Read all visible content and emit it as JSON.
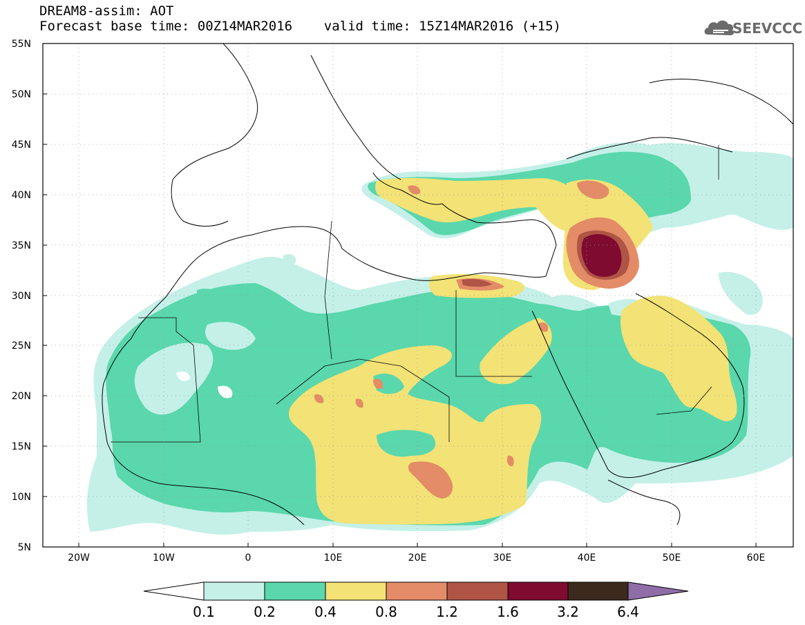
{
  "title": {
    "line1": "DREAM8-assim: AOT",
    "line2": "Forecast base time: 00Z14MAR2016    valid time: 15Z14MAR2016 (+15)"
  },
  "logo": {
    "text": "SEEVCCC",
    "icon": "cloud-logo-icon",
    "color": "#6b6b6b"
  },
  "map": {
    "lon_range": [
      -25,
      65
    ],
    "lat_range": [
      5,
      55
    ],
    "x_ticks": [
      "20W",
      "10W",
      "0",
      "10E",
      "20E",
      "30E",
      "40E",
      "50E",
      "60E"
    ],
    "y_ticks": [
      "55N",
      "50N",
      "45N",
      "40N",
      "35N",
      "30N",
      "25N",
      "20N",
      "15N",
      "10N",
      "5N"
    ],
    "grid": "dotted"
  },
  "colorbar": {
    "labels": [
      "0.1",
      "0.2",
      "0.4",
      "0.8",
      "1.2",
      "1.6",
      "3.2",
      "6.4"
    ],
    "colors": [
      "#ffffff",
      "#c4f0e8",
      "#5ad7ac",
      "#f3e276",
      "#e38c67",
      "#b05545",
      "#7f0b30",
      "#3c2a1c",
      "#8f6ea8"
    ]
  }
}
